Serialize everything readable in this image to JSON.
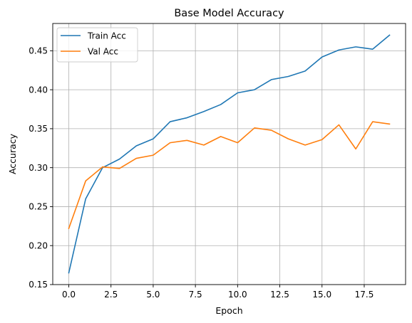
{
  "chart_data": {
    "type": "line",
    "title": "Base Model Accuracy",
    "xlabel": "Epoch",
    "ylabel": "Accuracy",
    "xlim": [
      -0.95,
      19.95
    ],
    "ylim": [
      0.15,
      0.485
    ],
    "xticks": [
      0.0,
      2.5,
      5.0,
      7.5,
      10.0,
      12.5,
      15.0,
      17.5
    ],
    "xtick_labels": [
      "0.0",
      "2.5",
      "5.0",
      "7.5",
      "10.0",
      "12.5",
      "15.0",
      "17.5"
    ],
    "yticks": [
      0.15,
      0.2,
      0.25,
      0.3,
      0.35,
      0.4,
      0.45
    ],
    "ytick_labels": [
      "0.15",
      "0.20",
      "0.25",
      "0.30",
      "0.35",
      "0.40",
      "0.45"
    ],
    "grid": true,
    "legend_position": "top-left",
    "x": [
      0,
      1,
      2,
      3,
      4,
      5,
      6,
      7,
      8,
      9,
      10,
      11,
      12,
      13,
      14,
      15,
      16,
      17,
      18,
      19
    ],
    "series": [
      {
        "name": "Train Acc",
        "color": "#1f77b4",
        "values": [
          0.165,
          0.26,
          0.3,
          0.311,
          0.328,
          0.337,
          0.359,
          0.364,
          0.372,
          0.381,
          0.396,
          0.4,
          0.413,
          0.417,
          0.424,
          0.442,
          0.451,
          0.455,
          0.452,
          0.47
        ]
      },
      {
        "name": "Val Acc",
        "color": "#ff7f0e",
        "values": [
          0.222,
          0.283,
          0.301,
          0.299,
          0.312,
          0.316,
          0.332,
          0.335,
          0.329,
          0.34,
          0.332,
          0.351,
          0.348,
          0.337,
          0.329,
          0.336,
          0.355,
          0.324,
          0.359,
          0.356
        ]
      }
    ]
  }
}
